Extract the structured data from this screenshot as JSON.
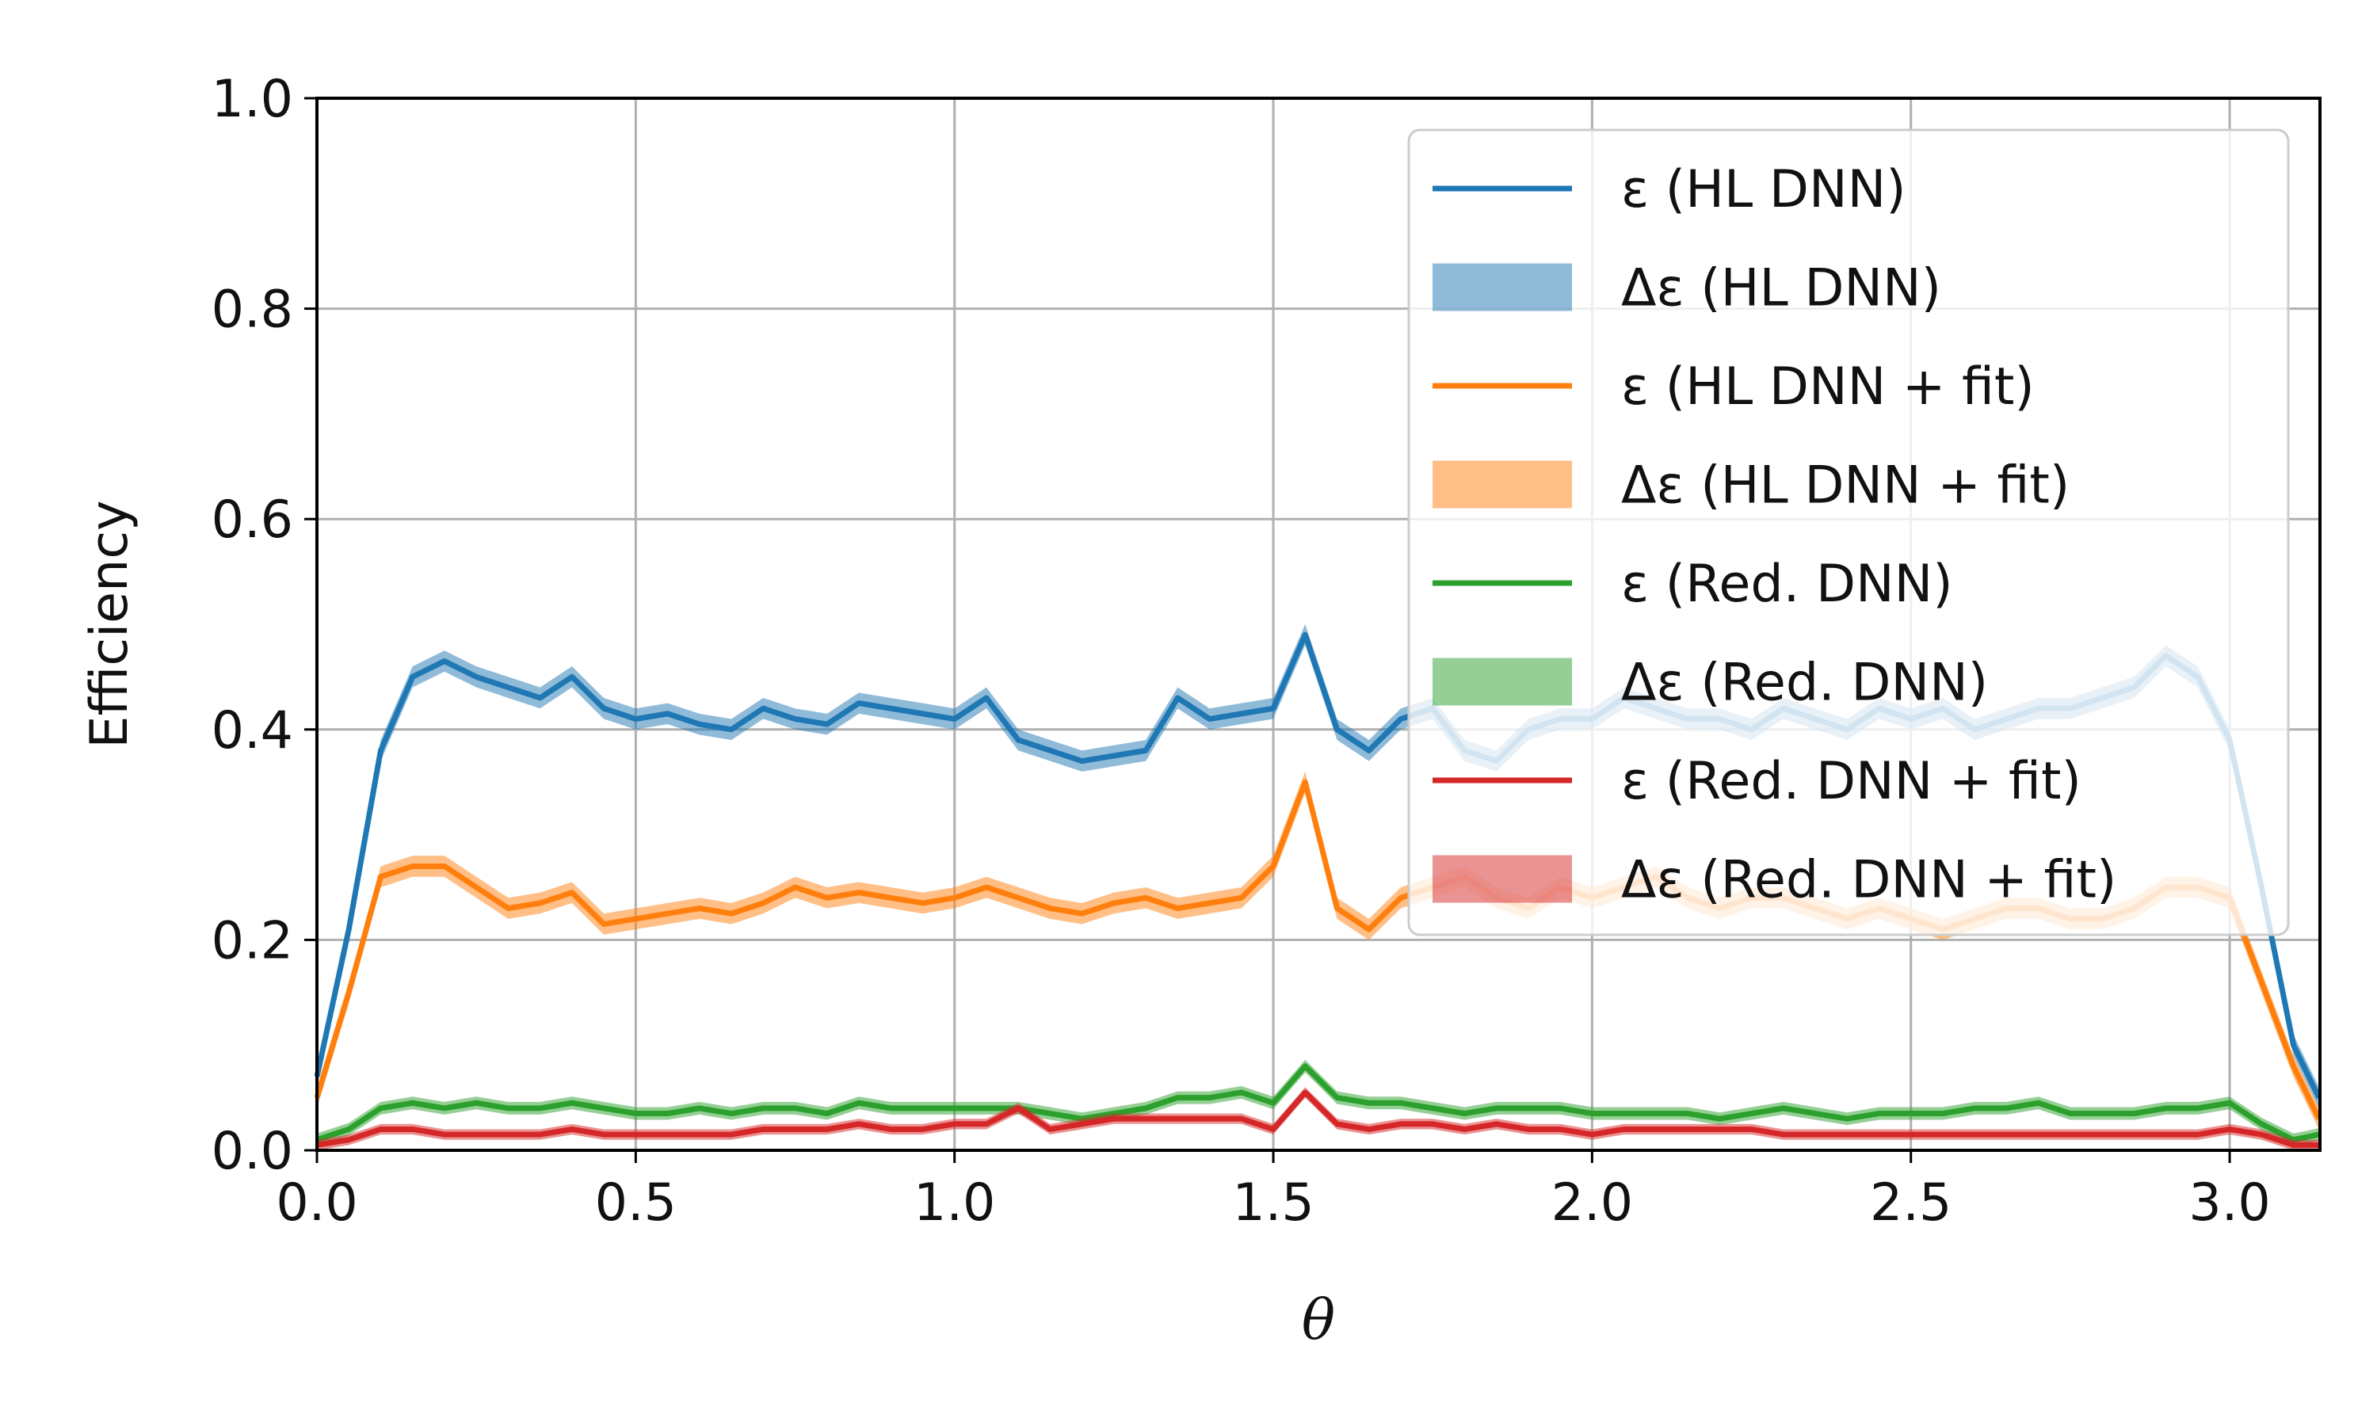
{
  "chart_data": {
    "type": "line",
    "xlabel": "θ",
    "ylabel": "Efficiency",
    "xlim": [
      0.0,
      3.1416
    ],
    "ylim": [
      0.0,
      1.0
    ],
    "x_ticks": [
      "0.0",
      "0.5",
      "1.0",
      "1.5",
      "2.0",
      "2.5",
      "3.0"
    ],
    "y_ticks": [
      "0.0",
      "0.2",
      "0.4",
      "0.6",
      "0.8",
      "1.0"
    ],
    "grid": true,
    "legend_position": "top-right",
    "colors": {
      "blue": "#1f77b4",
      "orange": "#ff7f0e",
      "green": "#2ca02c",
      "red": "#d62728"
    },
    "legend": [
      {
        "label": "ε (HL DNN)",
        "kind": "line",
        "series": 0
      },
      {
        "label": "Δε (HL DNN)",
        "kind": "band",
        "series": 0
      },
      {
        "label": "ε (HL DNN + fit)",
        "kind": "line",
        "series": 1
      },
      {
        "label": "Δε (HL DNN + fit)",
        "kind": "band",
        "series": 1
      },
      {
        "label": "ε (Red. DNN)",
        "kind": "line",
        "series": 2
      },
      {
        "label": "Δε (Red. DNN)",
        "kind": "band",
        "series": 2
      },
      {
        "label": "ε (Red. DNN + fit)",
        "kind": "line",
        "series": 3
      },
      {
        "label": "Δε (Red. DNN + fit)",
        "kind": "band",
        "series": 3
      }
    ],
    "series": [
      {
        "name": "ε (HL DNN)",
        "color": "#1f77b4",
        "x": [
          0.0,
          0.05,
          0.1,
          0.15,
          0.2,
          0.25,
          0.3,
          0.35,
          0.4,
          0.45,
          0.5,
          0.55,
          0.6,
          0.65,
          0.7,
          0.75,
          0.8,
          0.85,
          0.9,
          0.95,
          1.0,
          1.05,
          1.1,
          1.15,
          1.2,
          1.25,
          1.3,
          1.35,
          1.4,
          1.45,
          1.5,
          1.55,
          1.6,
          1.65,
          1.7,
          1.75,
          1.8,
          1.85,
          1.9,
          1.95,
          2.0,
          2.05,
          2.1,
          2.15,
          2.2,
          2.25,
          2.3,
          2.35,
          2.4,
          2.45,
          2.5,
          2.55,
          2.6,
          2.65,
          2.7,
          2.75,
          2.8,
          2.85,
          2.9,
          2.95,
          3.0,
          3.05,
          3.1,
          3.14
        ],
        "y": [
          0.07,
          0.21,
          0.38,
          0.45,
          0.465,
          0.45,
          0.44,
          0.43,
          0.45,
          0.42,
          0.41,
          0.415,
          0.405,
          0.4,
          0.42,
          0.41,
          0.405,
          0.425,
          0.42,
          0.415,
          0.41,
          0.43,
          0.39,
          0.38,
          0.37,
          0.375,
          0.38,
          0.43,
          0.41,
          0.415,
          0.42,
          0.49,
          0.4,
          0.38,
          0.41,
          0.42,
          0.38,
          0.37,
          0.4,
          0.41,
          0.41,
          0.43,
          0.42,
          0.41,
          0.41,
          0.4,
          0.42,
          0.41,
          0.4,
          0.42,
          0.41,
          0.42,
          0.4,
          0.41,
          0.42,
          0.42,
          0.43,
          0.44,
          0.47,
          0.45,
          0.39,
          0.25,
          0.1,
          0.05
        ],
        "err": 0.01
      },
      {
        "name": "ε (HL DNN + fit)",
        "color": "#ff7f0e",
        "x": [
          0.0,
          0.05,
          0.1,
          0.15,
          0.2,
          0.25,
          0.3,
          0.35,
          0.4,
          0.45,
          0.5,
          0.55,
          0.6,
          0.65,
          0.7,
          0.75,
          0.8,
          0.85,
          0.9,
          0.95,
          1.0,
          1.05,
          1.1,
          1.15,
          1.2,
          1.25,
          1.3,
          1.35,
          1.4,
          1.45,
          1.5,
          1.55,
          1.6,
          1.65,
          1.7,
          1.75,
          1.8,
          1.85,
          1.9,
          1.95,
          2.0,
          2.05,
          2.1,
          2.15,
          2.2,
          2.25,
          2.3,
          2.35,
          2.4,
          2.45,
          2.5,
          2.55,
          2.6,
          2.65,
          2.7,
          2.75,
          2.8,
          2.85,
          2.9,
          2.95,
          3.0,
          3.05,
          3.1,
          3.14
        ],
        "y": [
          0.05,
          0.15,
          0.26,
          0.27,
          0.27,
          0.25,
          0.23,
          0.235,
          0.245,
          0.215,
          0.22,
          0.225,
          0.23,
          0.225,
          0.235,
          0.25,
          0.24,
          0.245,
          0.24,
          0.235,
          0.24,
          0.25,
          0.24,
          0.23,
          0.225,
          0.235,
          0.24,
          0.23,
          0.235,
          0.24,
          0.27,
          0.35,
          0.23,
          0.21,
          0.24,
          0.25,
          0.26,
          0.24,
          0.23,
          0.25,
          0.24,
          0.25,
          0.26,
          0.24,
          0.23,
          0.24,
          0.24,
          0.23,
          0.22,
          0.23,
          0.22,
          0.21,
          0.22,
          0.23,
          0.23,
          0.22,
          0.22,
          0.23,
          0.25,
          0.25,
          0.24,
          0.16,
          0.08,
          0.03
        ],
        "err": 0.01
      },
      {
        "name": "ε (Red. DNN)",
        "color": "#2ca02c",
        "x": [
          0.0,
          0.05,
          0.1,
          0.15,
          0.2,
          0.25,
          0.3,
          0.35,
          0.4,
          0.45,
          0.5,
          0.55,
          0.6,
          0.65,
          0.7,
          0.75,
          0.8,
          0.85,
          0.9,
          0.95,
          1.0,
          1.05,
          1.1,
          1.15,
          1.2,
          1.25,
          1.3,
          1.35,
          1.4,
          1.45,
          1.5,
          1.55,
          1.6,
          1.65,
          1.7,
          1.75,
          1.8,
          1.85,
          1.9,
          1.95,
          2.0,
          2.05,
          2.1,
          2.15,
          2.2,
          2.25,
          2.3,
          2.35,
          2.4,
          2.45,
          2.5,
          2.55,
          2.6,
          2.65,
          2.7,
          2.75,
          2.8,
          2.85,
          2.9,
          2.95,
          3.0,
          3.05,
          3.1,
          3.14
        ],
        "y": [
          0.01,
          0.02,
          0.04,
          0.045,
          0.04,
          0.045,
          0.04,
          0.04,
          0.045,
          0.04,
          0.035,
          0.035,
          0.04,
          0.035,
          0.04,
          0.04,
          0.035,
          0.045,
          0.04,
          0.04,
          0.04,
          0.04,
          0.04,
          0.035,
          0.03,
          0.035,
          0.04,
          0.05,
          0.05,
          0.055,
          0.045,
          0.08,
          0.05,
          0.045,
          0.045,
          0.04,
          0.035,
          0.04,
          0.04,
          0.04,
          0.035,
          0.035,
          0.035,
          0.035,
          0.03,
          0.035,
          0.04,
          0.035,
          0.03,
          0.035,
          0.035,
          0.035,
          0.04,
          0.04,
          0.045,
          0.035,
          0.035,
          0.035,
          0.04,
          0.04,
          0.045,
          0.025,
          0.01,
          0.015
        ],
        "err": 0.006
      },
      {
        "name": "ε (Red. DNN + fit)",
        "color": "#d62728",
        "x": [
          0.0,
          0.05,
          0.1,
          0.15,
          0.2,
          0.25,
          0.3,
          0.35,
          0.4,
          0.45,
          0.5,
          0.55,
          0.6,
          0.65,
          0.7,
          0.75,
          0.8,
          0.85,
          0.9,
          0.95,
          1.0,
          1.05,
          1.1,
          1.15,
          1.2,
          1.25,
          1.3,
          1.35,
          1.4,
          1.45,
          1.5,
          1.55,
          1.6,
          1.65,
          1.7,
          1.75,
          1.8,
          1.85,
          1.9,
          1.95,
          2.0,
          2.05,
          2.1,
          2.15,
          2.2,
          2.25,
          2.3,
          2.35,
          2.4,
          2.45,
          2.5,
          2.55,
          2.6,
          2.65,
          2.7,
          2.75,
          2.8,
          2.85,
          2.9,
          2.95,
          3.0,
          3.05,
          3.1,
          3.14
        ],
        "y": [
          0.005,
          0.01,
          0.02,
          0.02,
          0.015,
          0.015,
          0.015,
          0.015,
          0.02,
          0.015,
          0.015,
          0.015,
          0.015,
          0.015,
          0.02,
          0.02,
          0.02,
          0.025,
          0.02,
          0.02,
          0.025,
          0.025,
          0.04,
          0.02,
          0.025,
          0.03,
          0.03,
          0.03,
          0.03,
          0.03,
          0.02,
          0.055,
          0.025,
          0.02,
          0.025,
          0.025,
          0.02,
          0.025,
          0.02,
          0.02,
          0.015,
          0.02,
          0.02,
          0.02,
          0.02,
          0.02,
          0.015,
          0.015,
          0.015,
          0.015,
          0.015,
          0.015,
          0.015,
          0.015,
          0.015,
          0.015,
          0.015,
          0.015,
          0.015,
          0.015,
          0.02,
          0.015,
          0.005,
          0.005
        ],
        "err": 0.005
      }
    ]
  }
}
